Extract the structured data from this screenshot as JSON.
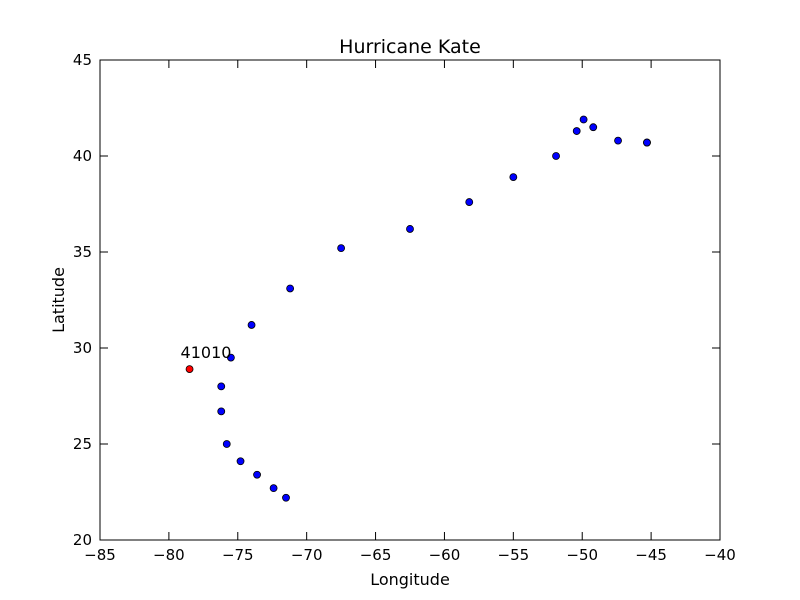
{
  "chart_data": {
    "type": "scatter",
    "title": "Hurricane Kate",
    "xlabel": "Longitude",
    "ylabel": "Latitude",
    "xlim": [
      -85,
      -40
    ],
    "ylim": [
      20,
      45
    ],
    "xticks": [
      -85,
      -80,
      -75,
      -70,
      -65,
      -60,
      -55,
      -50,
      -45,
      -40
    ],
    "yticks": [
      20,
      25,
      30,
      35,
      40,
      45
    ],
    "xtick_labels": [
      "−85",
      "−80",
      "−75",
      "−70",
      "−65",
      "−60",
      "−55",
      "−50",
      "−45",
      "−40"
    ],
    "ytick_labels": [
      "20",
      "25",
      "30",
      "35",
      "40",
      "45"
    ],
    "grid": false,
    "colors": {
      "track": "#0000ff",
      "buoy": "#ff0000"
    },
    "series": [
      {
        "points": [
          [
            -71.5,
            22.2
          ],
          [
            -72.4,
            22.7
          ],
          [
            -73.6,
            23.4
          ],
          [
            -74.8,
            24.1
          ],
          [
            -75.8,
            25.0
          ],
          [
            -76.2,
            26.7
          ],
          [
            -76.2,
            28.0
          ],
          [
            -75.5,
            29.5
          ],
          [
            -74.0,
            31.2
          ],
          [
            -71.2,
            33.1
          ],
          [
            -67.5,
            35.2
          ],
          [
            -62.5,
            36.2
          ],
          [
            -58.2,
            37.6
          ],
          [
            -55.0,
            38.9
          ],
          [
            -51.9,
            40.0
          ],
          [
            -50.4,
            41.3
          ],
          [
            -49.9,
            41.9
          ],
          [
            -49.2,
            41.5
          ],
          [
            -47.4,
            40.8
          ],
          [
            -45.3,
            40.7
          ],
          [
            -45.3,
            40.7
          ]
        ]
      },
      {
        "points": [
          [
            -78.5,
            28.9
          ]
        ]
      }
    ],
    "annotations": [
      {
        "text": "41010",
        "x": -78.5,
        "y": 28.9
      }
    ]
  }
}
